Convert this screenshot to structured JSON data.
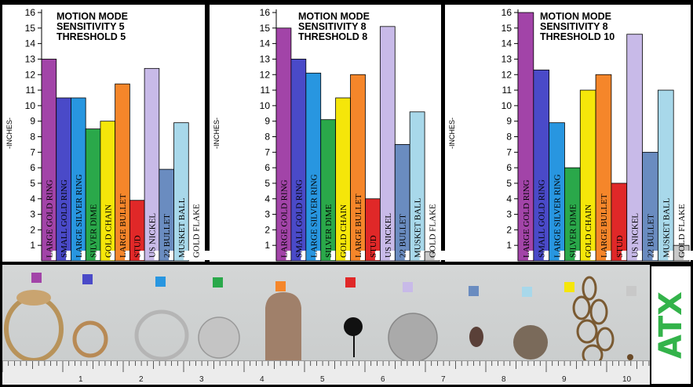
{
  "chart_data": [
    {
      "type": "bar",
      "annotation": [
        "MOTION MODE",
        "SENSITIVITY  5",
        "THRESHOLD 5"
      ],
      "ylabel": "-INCHES-",
      "ylim": [
        0,
        16
      ],
      "yticks": [
        1,
        2,
        3,
        4,
        5,
        6,
        7,
        8,
        9,
        10,
        11,
        12,
        13,
        14,
        15,
        16
      ],
      "categories": [
        "LARGE GOLD RING",
        "SMALL GOLD RING",
        "LARGE SILVER RING",
        "SILVER DIME",
        "GOLD CHAIN",
        "LARGE BULLET",
        "STUD",
        "US NICKEL",
        "22 BULLET",
        "MUSKET BALL",
        "GOLD FLAKE"
      ],
      "values": [
        13,
        10.5,
        10.5,
        8.5,
        9,
        11.4,
        3.9,
        12.4,
        5.9,
        8.9,
        0
      ],
      "colors": [
        "#a244a8",
        "#4a4ac8",
        "#2896e0",
        "#2aa84a",
        "#f5e60a",
        "#f5862a",
        "#e02828",
        "#c8bae8",
        "#6a8cc0",
        "#a8d8ea",
        "#c8c8c8"
      ],
      "grid": false,
      "legend": "none"
    },
    {
      "type": "bar",
      "annotation": [
        "MOTION MODE",
        "SENSITIVITY 8",
        "THRESHOLD 8"
      ],
      "ylabel": "-INCHES-",
      "ylim": [
        0,
        16
      ],
      "yticks": [
        1,
        2,
        3,
        4,
        5,
        6,
        7,
        8,
        9,
        10,
        11,
        12,
        13,
        14,
        15,
        16
      ],
      "categories": [
        "LARGE GOLD RING",
        "SMALL GOLD RING",
        "LARGE SILVER RING",
        "SILVER DIME",
        "GOLD CHAIN",
        "LARGE BULLET",
        "STUD",
        "US NICKEL",
        "22 BULLET",
        "MUSKET BALL",
        "GOLD FLAKE"
      ],
      "values": [
        15,
        13,
        12.1,
        9.1,
        10.5,
        12,
        4,
        15.1,
        7.5,
        9.6,
        0.6
      ],
      "colors": [
        "#a244a8",
        "#4a4ac8",
        "#2896e0",
        "#2aa84a",
        "#f5e60a",
        "#f5862a",
        "#e02828",
        "#c8bae8",
        "#6a8cc0",
        "#a8d8ea",
        "#c8c8c8"
      ],
      "grid": false,
      "legend": "none"
    },
    {
      "type": "bar",
      "annotation": [
        "MOTION MODE",
        "SENSITIVITY  8",
        "THRESHOLD  10"
      ],
      "ylabel": "-INCHES-",
      "ylim": [
        0,
        16
      ],
      "yticks": [
        1,
        2,
        3,
        4,
        5,
        6,
        7,
        8,
        9,
        10,
        11,
        12,
        13,
        14,
        15,
        16
      ],
      "categories": [
        "LARGE GOLD RING",
        "SMALL GOLD RING",
        "LARGE SILVER RING",
        "SILVER DIME",
        "GOLD CHAIN",
        "LARGE BULLET",
        "STUD",
        "US NICKEL",
        "22 BULLET",
        "MUSKET BALL",
        "GOLD FLAKE"
      ],
      "values": [
        16,
        12.3,
        8.9,
        6,
        11,
        12,
        5,
        14.6,
        7,
        11,
        1
      ],
      "colors": [
        "#a244a8",
        "#4a4ac8",
        "#2896e0",
        "#2aa84a",
        "#f5e60a",
        "#f5862a",
        "#e02828",
        "#c8bae8",
        "#6a8cc0",
        "#a8d8ea",
        "#c8c8c8"
      ],
      "grid": false,
      "legend": "none"
    }
  ],
  "photo": {
    "swatch_colors": [
      "#a244a8",
      "#4a4ac8",
      "#2896e0",
      "#2aa84a",
      "#f5862a",
      "#e02828",
      "#c8bae8",
      "#6a8cc0",
      "#a8d8ea",
      "#f5e60a",
      "#c8c8c8"
    ],
    "ruler_labels": [
      "1",
      "2",
      "3",
      "4",
      "5",
      "6",
      "7",
      "8",
      "9",
      "10"
    ]
  },
  "logo": {
    "text": "ATX",
    "color": "#33b34a"
  }
}
